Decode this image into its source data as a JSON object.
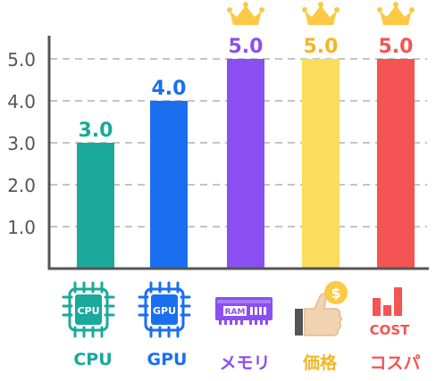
{
  "chart_data": {
    "type": "bar",
    "categories": [
      "CPU",
      "GPU",
      "メモリ",
      "価格",
      "コスパ"
    ],
    "values": [
      3.0,
      4.0,
      5.0,
      5.0,
      5.0
    ],
    "value_labels": [
      "3.0",
      "4.0",
      "5.0",
      "5.0",
      "5.0"
    ],
    "y_ticks": [
      "1.0",
      "2.0",
      "3.0",
      "4.0",
      "5.0"
    ],
    "ylim": [
      0,
      5.5
    ],
    "grid": "dashed horizontal",
    "colors": [
      "#1aa99b",
      "#1a6ff0",
      "#8a4ff0",
      "#fbdc5c",
      "#f45453"
    ],
    "label_colors": [
      "#1aa99b",
      "#1a6ff0",
      "#8a4ff0",
      "#f0b828",
      "#f45453"
    ],
    "top_score_marker": "crown-icon",
    "crown_color": "#fbc944",
    "icons": [
      "cpu-chip-icon",
      "gpu-chip-icon",
      "ram-module-icon",
      "thumbs-up-coin-icon",
      "cost-bar-icon"
    ],
    "icon_texts": {
      "cpu": "CPU",
      "gpu": "GPU",
      "ram": "RAM",
      "coin": "$",
      "cost": "COST"
    }
  }
}
